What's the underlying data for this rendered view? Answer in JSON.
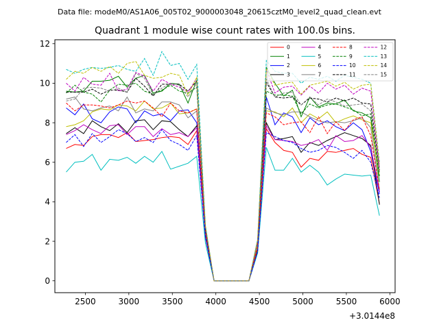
{
  "header": {
    "data_file": "Data file: modeM0/AS1A06_005T02_9000003048_20615cztM0_level2_quad_clean.evt"
  },
  "chart_data": {
    "type": "line",
    "title": "Quadrant 1 module wise count rates with 100.0s bins.",
    "xlabel": "",
    "ylabel": "",
    "x_offset_label": "+3.0144e8",
    "xlim": [
      2150,
      6060
    ],
    "ylim": [
      -0.6,
      12.2
    ],
    "xticks": [
      2500,
      3000,
      3500,
      4000,
      4500,
      5000,
      5500,
      6000
    ],
    "yticks": [
      0,
      2,
      4,
      6,
      8,
      10,
      12
    ],
    "x": [
      2280,
      2380,
      2480,
      2580,
      2680,
      2780,
      2880,
      2980,
      3080,
      3180,
      3280,
      3380,
      3480,
      3580,
      3680,
      3780,
      3880,
      3980,
      4080,
      4180,
      4280,
      4380,
      4480,
      4580,
      4680,
      4780,
      4880,
      4980,
      5080,
      5180,
      5280,
      5380,
      5480,
      5580,
      5680,
      5780,
      5880
    ],
    "legend": {
      "position": "top-right",
      "columns": 4
    },
    "series": [
      {
        "name": "0",
        "color": "#ff0000",
        "dash": "solid",
        "values": [
          6.7,
          6.9,
          6.85,
          7.3,
          7.4,
          7.4,
          7.25,
          7.5,
          7.05,
          7.1,
          7.15,
          7.25,
          7.3,
          7.25,
          6.9,
          7.6,
          2.3,
          0,
          0,
          0,
          0,
          0,
          1.5,
          7.7,
          7.0,
          6.6,
          6.5,
          5.75,
          6.2,
          6.1,
          6.55,
          6.5,
          6.6,
          6.7,
          6.4,
          6.25,
          3.9
        ]
      },
      {
        "name": "1",
        "color": "#008000",
        "dash": "solid",
        "values": [
          9.6,
          9.55,
          9.6,
          10.1,
          10.1,
          10.15,
          10.35,
          9.8,
          10.25,
          10.4,
          9.5,
          9.6,
          10.0,
          9.95,
          9.0,
          10.15,
          2.6,
          0,
          0,
          0,
          0,
          0,
          2.0,
          10.8,
          10.0,
          9.35,
          9.65,
          8.3,
          9.3,
          8.8,
          9.0,
          8.95,
          9.15,
          8.6,
          8.5,
          8.25,
          5.0
        ]
      },
      {
        "name": "2",
        "color": "#0000ff",
        "dash": "solid",
        "values": [
          8.75,
          8.4,
          8.95,
          8.2,
          8.0,
          8.55,
          8.8,
          8.7,
          8.0,
          8.6,
          8.35,
          8.45,
          8.1,
          8.6,
          8.65,
          8.0,
          2.4,
          0,
          0,
          0,
          0,
          0,
          1.8,
          9.3,
          7.9,
          8.5,
          8.3,
          7.5,
          8.25,
          7.9,
          8.1,
          7.8,
          7.6,
          8.0,
          7.65,
          6.55,
          4.4
        ]
      },
      {
        "name": "3",
        "color": "#000000",
        "dash": "solid",
        "values": [
          7.45,
          7.75,
          7.45,
          8.1,
          7.8,
          7.6,
          7.95,
          7.5,
          8.1,
          8.15,
          7.65,
          8.1,
          8.05,
          7.65,
          7.3,
          7.85,
          2.2,
          0,
          0,
          0,
          0,
          0,
          1.6,
          8.0,
          7.15,
          7.2,
          7.3,
          6.5,
          7.0,
          6.85,
          7.1,
          7.3,
          7.5,
          7.35,
          7.2,
          6.85,
          3.85
        ]
      },
      {
        "name": "4",
        "color": "#bf00bf",
        "dash": "solid",
        "values": [
          7.4,
          7.6,
          7.9,
          7.65,
          7.45,
          7.85,
          7.9,
          7.4,
          7.8,
          7.8,
          7.3,
          7.7,
          7.4,
          7.5,
          7.3,
          7.75,
          2.3,
          0,
          0,
          0,
          0,
          0,
          1.7,
          7.85,
          7.15,
          7.1,
          7.05,
          6.85,
          6.95,
          7.15,
          6.6,
          7.35,
          7.05,
          7.1,
          7.35,
          6.75,
          4.5
        ]
      },
      {
        "name": "5",
        "color": "#00bfbf",
        "dash": "solid",
        "values": [
          5.5,
          6.0,
          6.05,
          6.4,
          5.6,
          6.15,
          6.1,
          6.25,
          5.95,
          6.3,
          6.0,
          6.55,
          5.65,
          5.8,
          5.95,
          6.3,
          1.9,
          0,
          0,
          0,
          0,
          0,
          1.4,
          6.75,
          5.6,
          5.6,
          6.2,
          5.5,
          5.85,
          5.5,
          4.85,
          5.15,
          5.4,
          5.35,
          5.3,
          5.35,
          3.3
        ]
      },
      {
        "name": "6",
        "color": "#bfbf00",
        "dash": "solid",
        "values": [
          7.8,
          7.9,
          8.1,
          8.55,
          8.7,
          8.65,
          8.9,
          8.85,
          8.6,
          9.1,
          8.7,
          8.75,
          9.0,
          8.45,
          8.5,
          8.7,
          2.5,
          0,
          0,
          0,
          0,
          0,
          1.8,
          8.6,
          8.55,
          8.3,
          8.75,
          8.0,
          8.45,
          8.2,
          8.55,
          8.0,
          8.2,
          8.35,
          8.15,
          8.0,
          5.3
        ]
      },
      {
        "name": "7",
        "color": "#808080",
        "dash": "solid",
        "values": [
          9.2,
          9.3,
          8.7,
          8.6,
          8.75,
          8.85,
          8.6,
          9.3,
          8.5,
          8.7,
          8.6,
          9.05,
          9.05,
          8.9,
          8.25,
          8.6,
          2.5,
          0,
          0,
          0,
          0,
          0,
          1.7,
          8.75,
          8.5,
          8.4,
          8.55,
          8.55,
          8.3,
          8.1,
          8.0,
          8.05,
          8.0,
          8.1,
          8.25,
          7.75,
          4.6
        ]
      },
      {
        "name": "8",
        "color": "#ff0000",
        "dash": "dashed",
        "values": [
          9.0,
          8.6,
          8.9,
          8.9,
          8.85,
          8.75,
          8.9,
          9.1,
          9.0,
          9.1,
          8.75,
          8.3,
          9.0,
          8.6,
          8.5,
          8.7,
          2.5,
          0,
          0,
          0,
          0,
          0,
          1.7,
          8.5,
          8.3,
          7.9,
          8.0,
          8.05,
          7.5,
          8.3,
          7.45,
          8.05,
          7.6,
          8.15,
          8.3,
          7.35,
          4.6
        ]
      },
      {
        "name": "9",
        "color": "#008000",
        "dash": "dashed",
        "values": [
          9.5,
          9.9,
          9.55,
          9.45,
          9.05,
          9.65,
          9.95,
          9.9,
          10.0,
          9.6,
          9.45,
          9.65,
          9.9,
          9.6,
          9.5,
          9.8,
          2.6,
          0,
          0,
          0,
          0,
          0,
          2.0,
          9.6,
          9.4,
          9.4,
          9.35,
          8.45,
          8.95,
          8.75,
          8.9,
          8.95,
          8.8,
          8.65,
          8.35,
          8.45,
          5.3
        ]
      },
      {
        "name": "10",
        "color": "#0000ff",
        "dash": "dashed",
        "values": [
          7.0,
          7.4,
          6.8,
          7.45,
          7.0,
          7.3,
          7.65,
          7.45,
          7.05,
          7.25,
          7.0,
          7.65,
          7.1,
          6.9,
          6.6,
          7.35,
          2.2,
          0,
          0,
          0,
          0,
          0,
          1.5,
          7.5,
          7.3,
          7.1,
          7.0,
          6.7,
          6.5,
          6.6,
          6.85,
          6.75,
          6.5,
          6.2,
          6.6,
          6.0,
          4.2
        ]
      },
      {
        "name": "11",
        "color": "#000000",
        "dash": "dashed",
        "values": [
          9.55,
          9.55,
          9.55,
          9.7,
          9.45,
          9.65,
          9.65,
          9.55,
          10.25,
          9.85,
          9.35,
          9.95,
          9.95,
          9.95,
          9.6,
          10.1,
          2.6,
          0,
          0,
          0,
          0,
          0,
          2.0,
          10.05,
          9.3,
          9.25,
          9.3,
          8.9,
          9.25,
          9.2,
          9.05,
          9.25,
          9.1,
          9.25,
          9.0,
          8.95,
          5.6
        ]
      },
      {
        "name": "12",
        "color": "#bf00bf",
        "dash": "dashed",
        "values": [
          10.0,
          9.6,
          10.3,
          9.95,
          9.9,
          10.5,
          9.6,
          9.7,
          10.55,
          10.35,
          9.6,
          10.2,
          9.95,
          9.8,
          9.55,
          10.25,
          2.7,
          0,
          0,
          0,
          0,
          0,
          2.0,
          10.7,
          9.5,
          9.8,
          9.85,
          9.4,
          9.85,
          9.5,
          10.0,
          9.7,
          9.9,
          9.45,
          9.75,
          9.6,
          5.7
        ]
      },
      {
        "name": "13",
        "color": "#00bfbf",
        "dash": "dashed",
        "values": [
          10.7,
          10.5,
          10.7,
          10.8,
          10.75,
          10.8,
          10.9,
          10.7,
          10.6,
          11.25,
          10.4,
          11.6,
          10.9,
          11.0,
          10.2,
          10.95,
          2.8,
          0,
          0,
          0,
          0,
          0,
          2.1,
          11.15,
          10.6,
          10.5,
          10.5,
          10.0,
          10.3,
          10.2,
          10.35,
          10.1,
          10.4,
          10.3,
          10.2,
          10.0,
          6.0
        ]
      },
      {
        "name": "14",
        "color": "#bfbf00",
        "dash": "dashed",
        "values": [
          10.2,
          10.6,
          10.5,
          10.8,
          10.6,
          10.85,
          10.5,
          11.0,
          11.1,
          10.4,
          10.25,
          10.3,
          10.5,
          10.4,
          9.4,
          10.3,
          2.8,
          0,
          0,
          0,
          0,
          0,
          2.1,
          10.7,
          9.9,
          10.0,
          10.05,
          9.45,
          9.9,
          10.0,
          10.1,
          9.85,
          10.05,
          9.7,
          9.9,
          9.95,
          5.9
        ]
      },
      {
        "name": "15",
        "color": "#808080",
        "dash": "dashed",
        "values": [
          9.1,
          9.2,
          9.75,
          9.8,
          9.75,
          9.6,
          9.75,
          9.55,
          10.5,
          10.25,
          9.4,
          9.75,
          10.0,
          9.9,
          9.3,
          10.0,
          2.7,
          0,
          0,
          0,
          0,
          0,
          2.0,
          10.2,
          9.3,
          9.5,
          9.55,
          8.9,
          9.3,
          8.9,
          9.2,
          9.05,
          8.85,
          8.9,
          8.95,
          8.6,
          5.5
        ]
      }
    ]
  }
}
